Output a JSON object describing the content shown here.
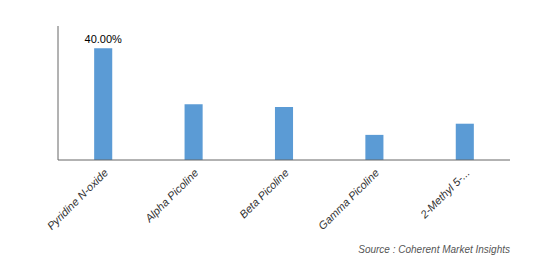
{
  "chart_data": {
    "type": "bar",
    "categories": [
      "Pyridine N-oxide",
      "Alpha Picoline",
      "Beta Picoline",
      "Gamma Picoline",
      "2-Methyl 5-..."
    ],
    "values": [
      40.0,
      20.0,
      19.0,
      9.0,
      13.0
    ],
    "value_labels": [
      "40.00%",
      null,
      null,
      null,
      null
    ],
    "data_labels": true,
    "color": "#5B9BD5",
    "ylim": [
      0,
      48
    ],
    "tick_labels": "x",
    "grid": false,
    "annotations": [
      "Source : Coherent Market Insights"
    ]
  }
}
